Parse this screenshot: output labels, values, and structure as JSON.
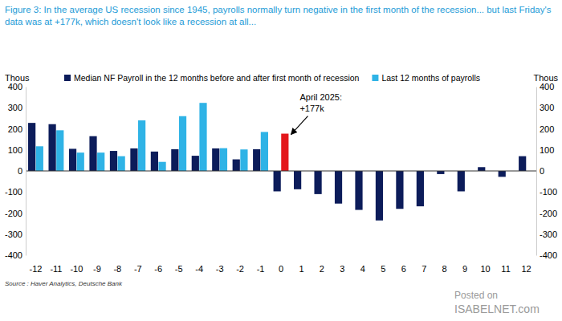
{
  "chart_data": {
    "type": "bar",
    "title": "Figure 3: In the average US recession since 1945, payrolls normally turn negative in the first month of the recession... but last Friday's data was at +177k, which doesn't look like a recession at all...",
    "y_label": "Thous",
    "y2_label": "Thous",
    "categories": [
      "-12",
      "-11",
      "-10",
      "-9",
      "-8",
      "-7",
      "-6",
      "-5",
      "-4",
      "-3",
      "-2",
      "-1",
      "0",
      "1",
      "2",
      "3",
      "4",
      "5",
      "6",
      "7",
      "8",
      "9",
      "10",
      "11",
      "12"
    ],
    "series": [
      {
        "name": "Median NF Payroll in the 12 months before and after first month of recession",
        "color": "#0c1c5a",
        "values": [
          228,
          222,
          105,
          165,
          95,
          107,
          92,
          103,
          72,
          107,
          55,
          103,
          -97,
          -87,
          -110,
          -155,
          -185,
          -235,
          -180,
          -168,
          -15,
          -97,
          18,
          -28,
          70
        ]
      },
      {
        "name": "Last 12 months of payrolls",
        "color": "#2fb3e6",
        "colors": [
          "#2fb3e6",
          "#2fb3e6",
          "#2fb3e6",
          "#2fb3e6",
          "#2fb3e6",
          "#2fb3e6",
          "#2fb3e6",
          "#2fb3e6",
          "#2fb3e6",
          "#2fb3e6",
          "#2fb3e6",
          "#2fb3e6",
          "#e3171b",
          "#2fb3e6",
          "#2fb3e6",
          "#2fb3e6",
          "#2fb3e6",
          "#2fb3e6",
          "#2fb3e6",
          "#2fb3e6",
          "#2fb3e6",
          "#2fb3e6",
          "#2fb3e6",
          "#2fb3e6",
          "#2fb3e6"
        ],
        "values": [
          117,
          193,
          87,
          87,
          70,
          240,
          43,
          260,
          323,
          108,
          102,
          185,
          177,
          null,
          null,
          null,
          null,
          null,
          null,
          null,
          null,
          null,
          null,
          null,
          null
        ]
      }
    ],
    "ylim": [
      -400,
      400
    ],
    "yticks": [
      -400,
      -300,
      -200,
      -100,
      0,
      100,
      200,
      300,
      400
    ],
    "y2lim": [
      -400,
      400
    ],
    "y2ticks": [
      -400,
      -300,
      -200,
      -100,
      0,
      100,
      200,
      300,
      400
    ],
    "grid": false,
    "legend": "top",
    "annotation": [
      "April 2025:",
      "+177k"
    ],
    "source": "Source : Haver Analytics, Deutsche Bank",
    "watermark": [
      "Posted on",
      "ISABELNET.com"
    ]
  }
}
